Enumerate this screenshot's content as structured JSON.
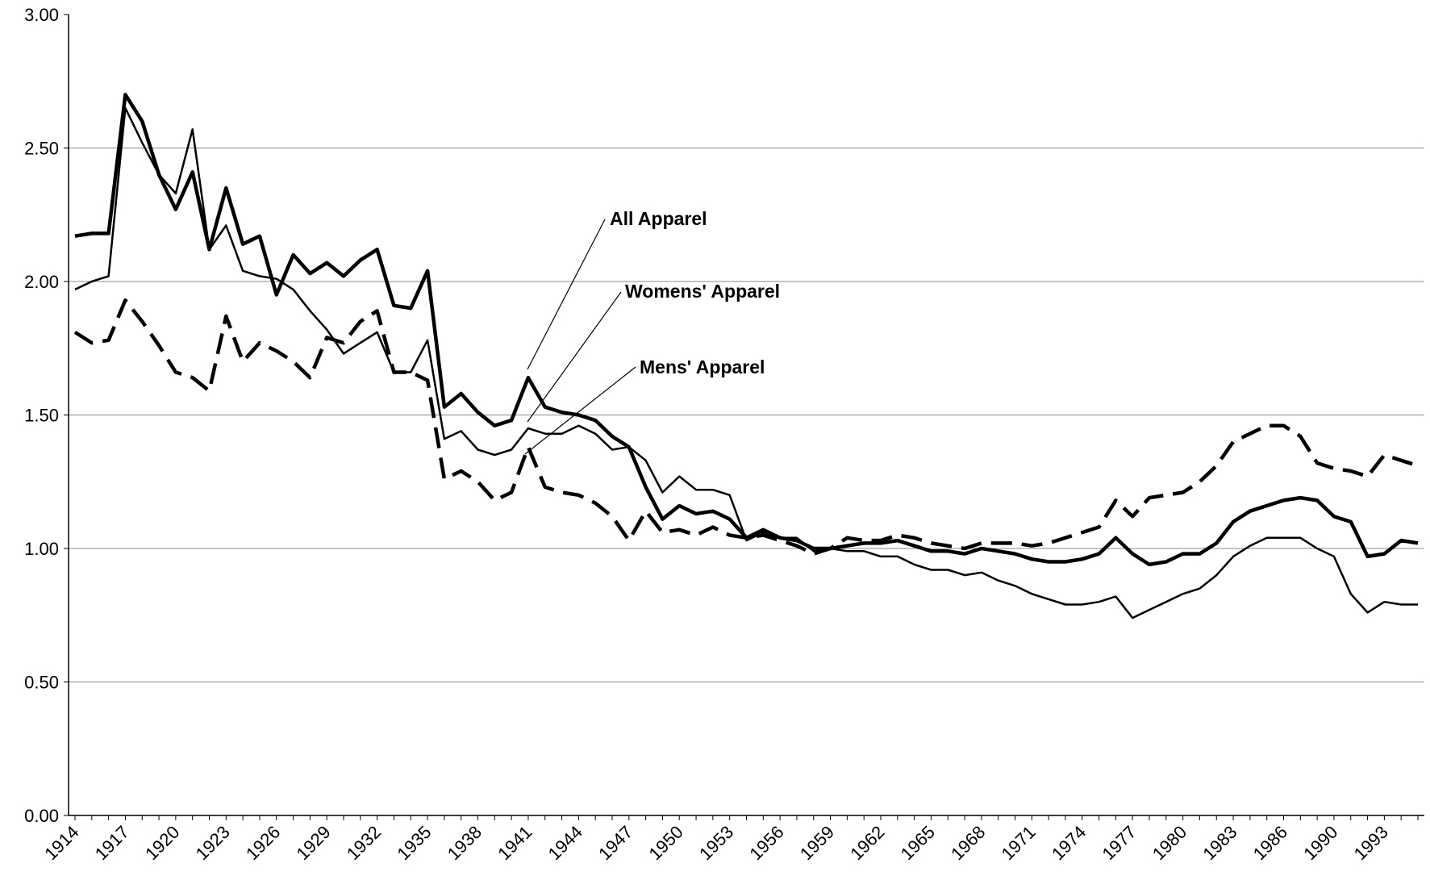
{
  "chart_data": {
    "type": "line",
    "categories": [
      "1914",
      null,
      null,
      "1917",
      null,
      null,
      "1920",
      null,
      null,
      "1923",
      null,
      null,
      "1926",
      null,
      null,
      "1929",
      null,
      null,
      "1932",
      null,
      null,
      "1935",
      null,
      null,
      "1938",
      null,
      null,
      "1941",
      null,
      null,
      "1944",
      null,
      null,
      "1947",
      null,
      null,
      "1950",
      null,
      null,
      "1953",
      null,
      null,
      "1956",
      null,
      null,
      "1959",
      null,
      null,
      "1962",
      null,
      null,
      "1965",
      null,
      null,
      "1968",
      null,
      null,
      "1971",
      null,
      null,
      "1974",
      null,
      null,
      "1977",
      null,
      null,
      "1980",
      null,
      null,
      "1983",
      null,
      null,
      "1986",
      null,
      null,
      "1990",
      null,
      null,
      "1993",
      null,
      null
    ],
    "series": [
      {
        "name": "All Apparel",
        "color": "#000000",
        "style": "thick",
        "values": [
          2.17,
          2.18,
          2.18,
          2.7,
          2.6,
          2.4,
          2.27,
          2.41,
          2.12,
          2.35,
          2.14,
          2.17,
          1.95,
          2.1,
          2.03,
          2.07,
          2.02,
          2.08,
          2.12,
          1.91,
          1.9,
          2.04,
          1.53,
          1.58,
          1.51,
          1.46,
          1.48,
          1.64,
          1.53,
          1.51,
          1.5,
          1.48,
          1.42,
          1.38,
          1.23,
          1.11,
          1.16,
          1.13,
          1.14,
          1.11,
          1.04,
          1.07,
          1.04,
          1.03,
          1.0,
          1.0,
          1.01,
          1.02,
          1.02,
          1.03,
          1.01,
          0.99,
          0.99,
          0.98,
          1.0,
          0.99,
          0.98,
          0.96,
          0.95,
          0.95,
          0.96,
          0.98,
          1.04,
          0.98,
          0.94,
          0.95,
          0.98,
          0.98,
          1.02,
          1.1,
          1.14,
          1.16,
          1.18,
          1.19,
          1.18,
          1.12,
          1.1,
          0.97,
          0.98,
          1.03,
          1.02
        ]
      },
      {
        "name": "Womens' Apparel",
        "color": "#000000",
        "style": "thin",
        "values": [
          1.97,
          2.0,
          2.02,
          2.65,
          2.52,
          2.4,
          2.33,
          2.57,
          2.12,
          2.21,
          2.04,
          2.02,
          2.01,
          1.97,
          1.89,
          1.82,
          1.73,
          1.77,
          1.81,
          1.66,
          1.66,
          1.78,
          1.41,
          1.44,
          1.37,
          1.35,
          1.37,
          1.45,
          1.43,
          1.43,
          1.46,
          1.43,
          1.37,
          1.38,
          1.33,
          1.21,
          1.27,
          1.22,
          1.22,
          1.2,
          1.03,
          1.06,
          1.04,
          1.04,
          0.99,
          1.0,
          0.99,
          0.99,
          0.97,
          0.97,
          0.94,
          0.92,
          0.92,
          0.9,
          0.91,
          0.88,
          0.86,
          0.83,
          0.81,
          0.79,
          0.79,
          0.8,
          0.82,
          0.74,
          0.77,
          0.8,
          0.83,
          0.85,
          0.9,
          0.97,
          1.01,
          1.04,
          1.04,
          1.04,
          1.0,
          0.97,
          0.83,
          0.76,
          0.8,
          0.79,
          0.79
        ]
      },
      {
        "name": "Mens' Apparel",
        "color": "#000000",
        "style": "dashed",
        "values": [
          1.81,
          1.77,
          1.78,
          1.93,
          1.85,
          1.76,
          1.66,
          1.64,
          1.59,
          1.87,
          1.7,
          1.77,
          1.74,
          1.7,
          1.64,
          1.79,
          1.77,
          1.85,
          1.89,
          1.66,
          1.66,
          1.63,
          1.26,
          1.29,
          1.25,
          1.18,
          1.21,
          1.38,
          1.23,
          1.21,
          1.2,
          1.17,
          1.12,
          1.03,
          1.14,
          1.06,
          1.07,
          1.05,
          1.08,
          1.05,
          1.04,
          1.05,
          1.03,
          1.01,
          0.98,
          1.0,
          1.04,
          1.03,
          1.03,
          1.05,
          1.04,
          1.02,
          1.01,
          1.0,
          1.02,
          1.02,
          1.02,
          1.01,
          1.02,
          1.04,
          1.06,
          1.08,
          1.18,
          1.12,
          1.19,
          1.2,
          1.21,
          1.25,
          1.31,
          1.4,
          1.43,
          1.46,
          1.46,
          1.42,
          1.32,
          1.3,
          1.29,
          1.27,
          1.35,
          1.33,
          1.31
        ]
      }
    ],
    "annotations": [
      "All Apparel",
      "Womens' Apparel",
      "Mens' Apparel"
    ],
    "ylim": [
      0,
      3
    ],
    "yticks": [
      {
        "value": 0,
        "label": "0.00"
      },
      {
        "value": 0.5,
        "label": "0.50"
      },
      {
        "value": 1,
        "label": "1.00"
      },
      {
        "value": 1.5,
        "label": "1.50"
      },
      {
        "value": 2,
        "label": "2.00"
      },
      {
        "value": 2.5,
        "label": "2.50"
      },
      {
        "value": 3,
        "label": "3.00"
      }
    ],
    "grid": true
  }
}
